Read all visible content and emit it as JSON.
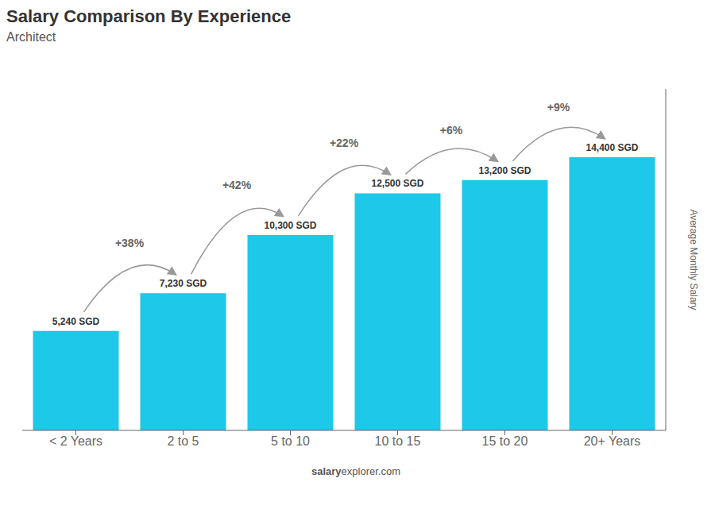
{
  "chart_data": {
    "type": "bar",
    "title": "Salary Comparison By Experience",
    "subtitle": "Architect",
    "categories": [
      "< 2 Years",
      "2 to 5",
      "5 to 10",
      "10 to 15",
      "15 to 20",
      "20+ Years"
    ],
    "values": [
      5240,
      7230,
      10300,
      12500,
      13200,
      14400
    ],
    "value_labels": [
      "5,240 SGD",
      "7,230 SGD",
      "10,300 SGD",
      "12,500 SGD",
      "13,200 SGD",
      "14,400 SGD"
    ],
    "data_labels": true,
    "annotations": [
      "+38%",
      "+42%",
      "+22%",
      "+6%",
      "+9%"
    ],
    "y_label": "Average Monthly Salary",
    "footer": [
      "salary",
      "explorer.com"
    ],
    "ylim": [
      0,
      18000
    ],
    "tick_labels": "x",
    "grid": false,
    "color": "#1EC8E8"
  }
}
